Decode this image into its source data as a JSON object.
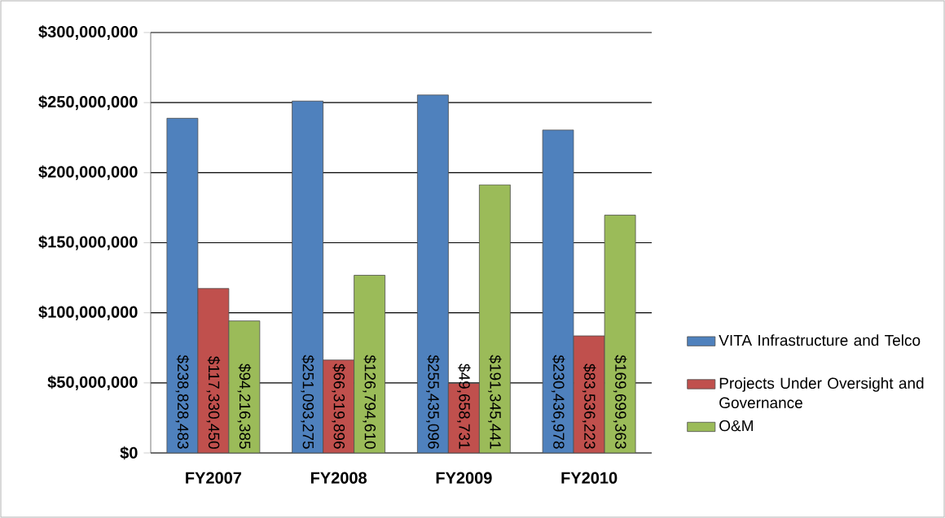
{
  "chart_data": {
    "type": "bar",
    "categories": [
      "FY2007",
      "FY2008",
      "FY2009",
      "FY2010"
    ],
    "series": [
      {
        "name": "VITA Infrastructure and Telco",
        "color": "#4f81bd",
        "values": [
          238828483,
          251093275,
          255435096,
          230436978
        ],
        "value_labels": [
          "$238,828,483",
          "$251,093,275",
          "$255,435,096",
          "$230,436,978"
        ]
      },
      {
        "name": "Projects Under Oversight and Governance",
        "color": "#c0504d",
        "values": [
          117330450,
          66319896,
          49658731,
          83536223
        ],
        "value_labels": [
          "$117,330,450",
          "$66,319,896",
          "$49,658,731",
          "$83,536,223"
        ]
      },
      {
        "name": "O&M",
        "color": "#9bbb59",
        "values": [
          94216385,
          126794610,
          191345441,
          169699363
        ],
        "value_labels": [
          "$94,216,385",
          "$126,794,610",
          "$191,345,441",
          "$169,699,363"
        ]
      }
    ],
    "ylim": [
      0,
      300000000
    ],
    "yticks": [
      {
        "value": 0,
        "label": "$0"
      },
      {
        "value": 50000000,
        "label": "$50,000,000"
      },
      {
        "value": 100000000,
        "label": "$100,000,000"
      },
      {
        "value": 150000000,
        "label": "$150,000,000"
      },
      {
        "value": 200000000,
        "label": "$200,000,000"
      },
      {
        "value": 250000000,
        "label": "$250,000,000"
      },
      {
        "value": 300000000,
        "label": "$300,000,000"
      }
    ],
    "grid": "y",
    "legend": "right"
  }
}
